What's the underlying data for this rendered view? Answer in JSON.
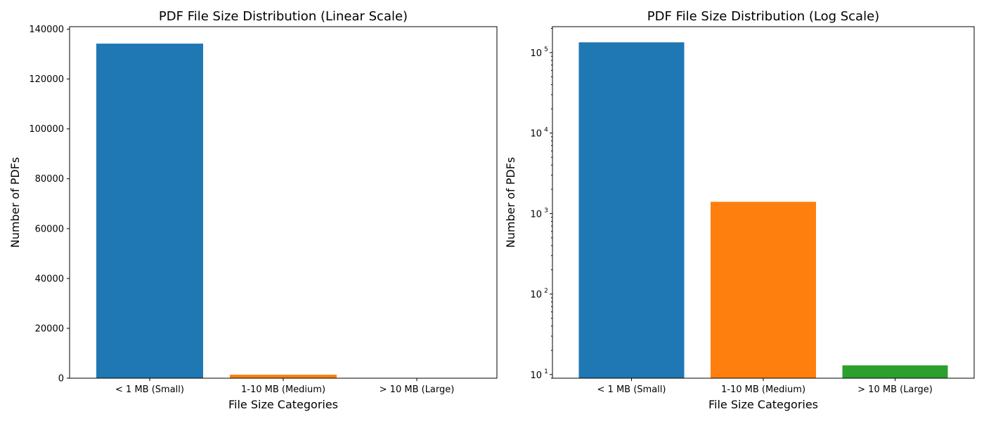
{
  "chart_data": [
    {
      "type": "bar",
      "title": "PDF File Size Distribution (Linear Scale)",
      "xlabel": "File Size Categories",
      "ylabel": "Number of PDFs",
      "categories": [
        "< 1 MB (Small)",
        "1-10 MB (Medium)",
        "> 10 MB (Large)"
      ],
      "values": [
        134200,
        1400,
        13
      ],
      "colors": [
        "#1f77b4",
        "#ff7f0e",
        "#2ca02c"
      ],
      "yscale": "linear",
      "ylim": [
        0,
        141000
      ],
      "yticks": [
        0,
        20000,
        40000,
        60000,
        80000,
        100000,
        120000,
        140000
      ],
      "ytick_labels": [
        "0",
        "20000",
        "40000",
        "60000",
        "80000",
        "100000",
        "120000",
        "140000"
      ],
      "grid": false,
      "legend": "none"
    },
    {
      "type": "bar",
      "title": "PDF File Size Distribution (Log Scale)",
      "xlabel": "File Size Categories",
      "ylabel": "Number of PDFs",
      "categories": [
        "< 1 MB (Small)",
        "1-10 MB (Medium)",
        "> 10 MB (Large)"
      ],
      "values": [
        134200,
        1400,
        13
      ],
      "colors": [
        "#1f77b4",
        "#ff7f0e",
        "#2ca02c"
      ],
      "yscale": "log",
      "ylim": [
        9.0,
        210000
      ],
      "yticks": [
        10,
        100,
        1000,
        10000,
        100000
      ],
      "ytick_labels": [
        {
          "base": "10",
          "exp": "1"
        },
        {
          "base": "10",
          "exp": "2"
        },
        {
          "base": "10",
          "exp": "3"
        },
        {
          "base": "10",
          "exp": "4"
        },
        {
          "base": "10",
          "exp": "5"
        }
      ],
      "grid": false,
      "legend": "none"
    }
  ]
}
